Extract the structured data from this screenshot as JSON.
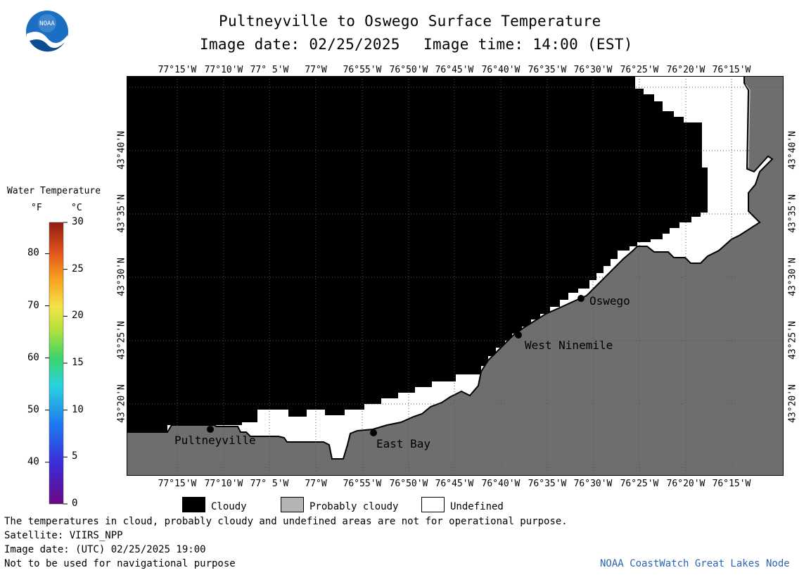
{
  "title": "Pultneyville to Oswego Surface Temperature",
  "subtitle_date": "Image date: 02/25/2025",
  "subtitle_time": "Image time: 14:00 (EST)",
  "logo_text": "NOAA",
  "longitude_labels": [
    "77°15'W",
    "77°10'W",
    "77° 5'W",
    "77°W",
    "76°55'W",
    "76°50'W",
    "76°45'W",
    "76°40'W",
    "76°35'W",
    "76°30'W",
    "76°25'W",
    "76°20'W",
    "76°15'W"
  ],
  "latitude_labels": [
    "43°40'N",
    "43°35'N",
    "43°30'N",
    "43°25'N",
    "43°20'N"
  ],
  "places": [
    {
      "name": "Oswego"
    },
    {
      "name": "West Ninemile"
    },
    {
      "name": "East Bay"
    },
    {
      "name": "Pultneyville"
    }
  ],
  "colorbar": {
    "title": "Water Temperature",
    "unit_f": "°F",
    "unit_c": "°C",
    "f_ticks": [
      "80",
      "70",
      "60",
      "50",
      "40"
    ],
    "c_ticks": [
      "30",
      "25",
      "20",
      "15",
      "10",
      "5",
      "0"
    ],
    "range_c": [
      0,
      30
    ]
  },
  "legend": [
    {
      "label": "Cloudy",
      "color": "#000000"
    },
    {
      "label": "Probably cloudy",
      "color": "#b4b4b4"
    },
    {
      "label": "Undefined",
      "color": "#ffffff"
    }
  ],
  "colors": {
    "land": "#6e6e6e",
    "cloud": "#000000",
    "undefined": "#ffffff"
  },
  "footer": {
    "note": "The temperatures in cloud, probably cloudy and undefined areas are not for operational purpose.",
    "satellite": "Satellite: VIIRS_NPP",
    "utc_date": "Image date: (UTC) 02/25/2025  19:00",
    "navigation": "Not to be used for navigational purpose",
    "credit": "NOAA CoastWatch Great Lakes Node"
  }
}
